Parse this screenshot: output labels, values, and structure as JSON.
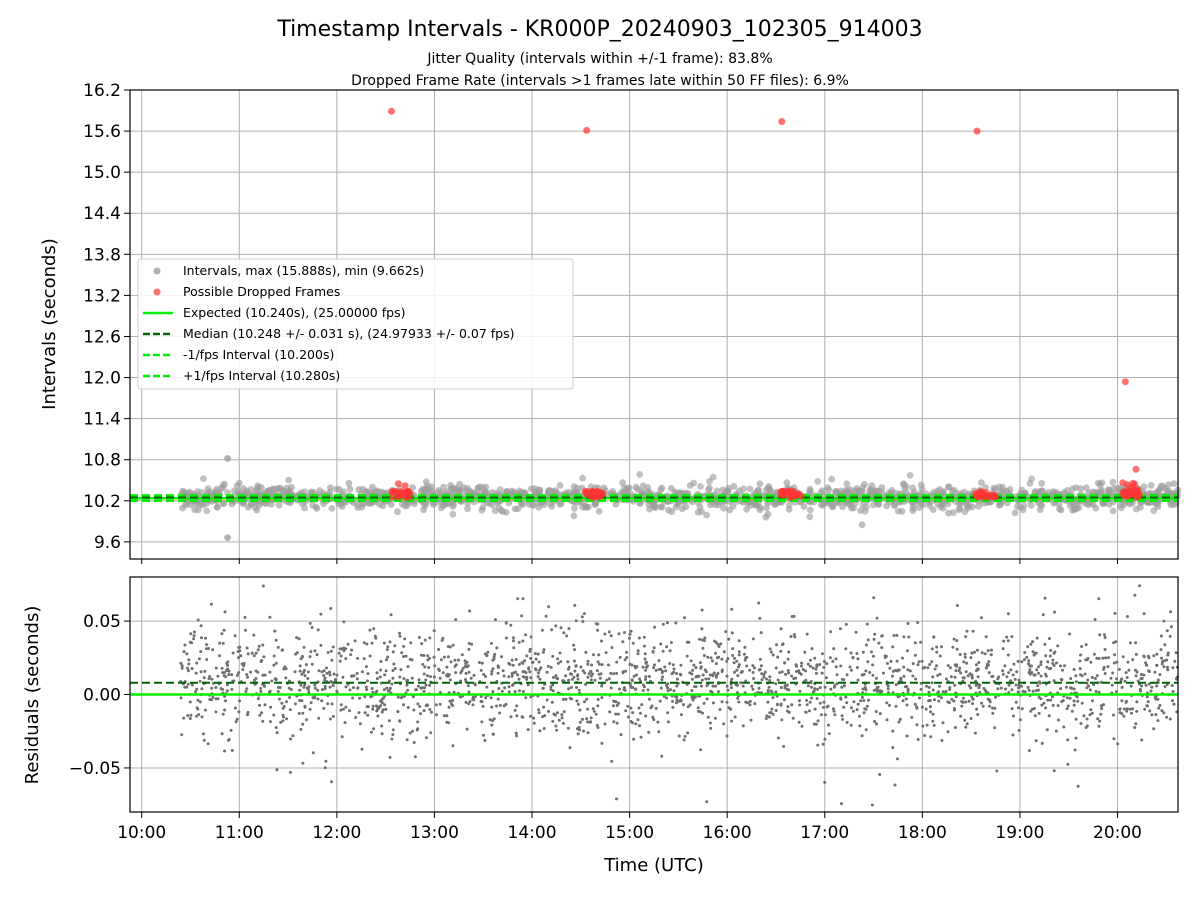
{
  "chart_data": [
    {
      "type": "scatter",
      "title": "Timestamp Intervals - KR000P_20240903_102305_914003",
      "subtitle_lines": [
        "Jitter Quality (intervals within +/-1 frame): 83.8%",
        "Dropped Frame Rate (intervals >1 frames late within 50 FF files): 6.9%"
      ],
      "ylabel": "Intervals (seconds)",
      "xlim": [
        9.88,
        20.62
      ],
      "ylim": [
        9.35,
        16.2
      ],
      "yticks": [
        "9.6",
        "10.2",
        "10.8",
        "11.4",
        "12.0",
        "12.6",
        "13.2",
        "13.8",
        "14.4",
        "15.0",
        "15.6",
        "16.2"
      ],
      "grid": true,
      "legend_placement": "center-left",
      "legend": [
        "Intervals, max (15.888s), min (9.662s)",
        "Possible Dropped Frames",
        "Expected (10.240s), (25.00000 fps)",
        "Median (10.248 +/- 0.031 s), (24.97933 +/- 0.07 fps)",
        "-1/fps Interval (10.200s)",
        "+1/fps Interval (10.280s)"
      ],
      "expected_interval": 10.24,
      "median_interval": 10.248,
      "minus_one_fps_interval": 10.2,
      "plus_one_fps_interval": 10.28,
      "interval_points_summary": {
        "time_range_hours": [
          10.4,
          20.62
        ],
        "max": 15.888,
        "min": 9.662,
        "typical_range": [
          9.95,
          10.6
        ]
      },
      "dropped_frame_outliers": [
        {
          "x": 12.56,
          "y": 15.89
        },
        {
          "x": 14.56,
          "y": 15.61
        },
        {
          "x": 16.56,
          "y": 15.74
        },
        {
          "x": 18.56,
          "y": 15.6
        },
        {
          "x": 20.08,
          "y": 11.94
        },
        {
          "x": 20.19,
          "y": 10.66
        },
        {
          "x": 12.63,
          "y": 10.45
        },
        {
          "x": 12.7,
          "y": 10.42
        }
      ],
      "dropped_frame_clusters_hours": [
        12.65,
        14.65,
        16.65,
        18.65,
        20.12
      ],
      "colors": {
        "intervals": "#9e9e9e",
        "dropped": "#ff3333",
        "expected": "#00ee00",
        "median": "#006400",
        "bounds": "#00ee00"
      }
    },
    {
      "type": "scatter",
      "ylabel": "Residuals (seconds)",
      "xlabel": "Time (UTC)",
      "xlim": [
        9.88,
        20.62
      ],
      "ylim": [
        -0.08,
        0.08
      ],
      "yticks": [
        "−0.05",
        "0.00",
        "0.05"
      ],
      "xticks": [
        "10:00",
        "11:00",
        "12:00",
        "13:00",
        "14:00",
        "15:00",
        "16:00",
        "17:00",
        "18:00",
        "19:00",
        "20:00"
      ],
      "grid": true,
      "expected_residual": 0.0,
      "median_residual": 0.008,
      "residual_points_summary": {
        "time_range_hours": [
          10.4,
          20.62
        ],
        "typical_range": [
          -0.04,
          0.05
        ]
      },
      "colors": {
        "points": "#6f6f6f",
        "expected": "#00ee00",
        "median": "#006400"
      }
    }
  ]
}
